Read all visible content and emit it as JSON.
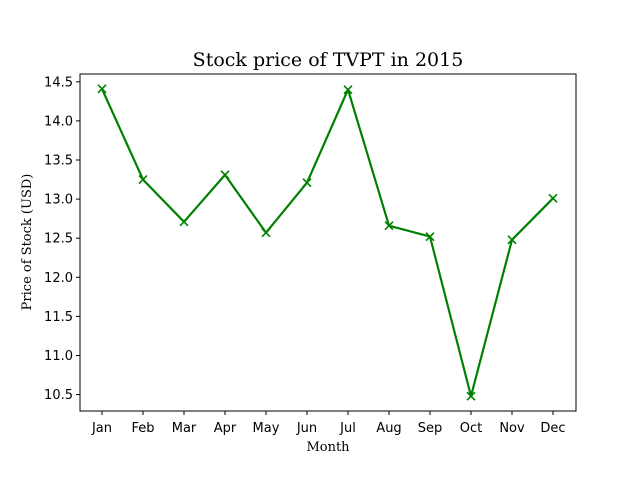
{
  "chart_data": {
    "type": "line",
    "title": "Stock price of TVPT in 2015",
    "xlabel": "Month",
    "ylabel": "Price of Stock (USD)",
    "categories": [
      "Jan",
      "Feb",
      "Mar",
      "Apr",
      "May",
      "Jun",
      "Jul",
      "Aug",
      "Sep",
      "Oct",
      "Nov",
      "Dec"
    ],
    "series": [
      {
        "values": [
          14.41,
          13.25,
          12.71,
          13.31,
          12.57,
          13.21,
          14.4,
          12.66,
          12.52,
          10.48,
          12.48,
          13.01
        ],
        "color": "#008000",
        "marker": "x"
      }
    ],
    "ylim": [
      10.29,
      14.6
    ],
    "yticks": [
      "10.5",
      "11.0",
      "11.5",
      "12.0",
      "12.5",
      "13.0",
      "13.5",
      "14.0",
      "14.5"
    ],
    "grid": false,
    "legend": "none"
  }
}
